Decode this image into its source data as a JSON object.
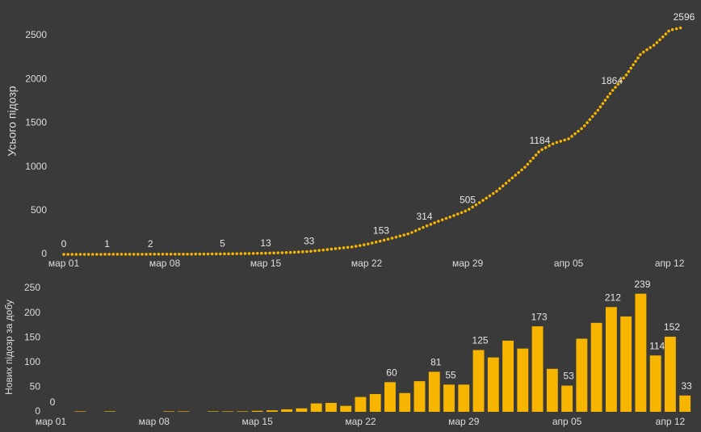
{
  "chart_data": [
    {
      "type": "line",
      "y_label": "Усього підозр",
      "color": "#f7b500",
      "categories": [
        "мар 01",
        null,
        null,
        null,
        null,
        null,
        null,
        "мар 08",
        null,
        null,
        null,
        null,
        null,
        null,
        "мар 15",
        null,
        null,
        null,
        null,
        null,
        null,
        "мар 22",
        null,
        null,
        null,
        null,
        null,
        null,
        "мар 29",
        null,
        null,
        null,
        null,
        null,
        null,
        "апр 05",
        null,
        null,
        null,
        null,
        null,
        null,
        "апр 12",
        null
      ],
      "values": [
        0,
        0,
        0,
        1,
        1,
        1,
        2,
        2,
        2,
        3,
        4,
        5,
        7,
        10,
        13,
        18,
        24,
        33,
        50,
        68,
        85,
        115,
        153,
        195,
        240,
        314,
        380,
        440,
        505,
        610,
        720,
        860,
        1000,
        1184,
        1270,
        1320,
        1450,
        1640,
        1864,
        2050,
        2290,
        2400,
        2560,
        2596
      ],
      "value_labels": [
        "0",
        null,
        null,
        "1",
        null,
        null,
        "2",
        null,
        null,
        null,
        null,
        "5",
        null,
        null,
        "13",
        null,
        null,
        "33",
        null,
        null,
        null,
        null,
        "153",
        null,
        null,
        "314",
        null,
        null,
        "505",
        null,
        null,
        null,
        null,
        "1184",
        null,
        null,
        null,
        null,
        "1864",
        null,
        null,
        null,
        null,
        "2596"
      ],
      "ylim": [
        0,
        2700
      ],
      "yticks": [
        0,
        500,
        1000,
        1500,
        2000,
        2500
      ]
    },
    {
      "type": "bar",
      "y_label": "Нових підозр за добу",
      "color": "#f7b500",
      "categories": [
        "мар 01",
        null,
        null,
        null,
        null,
        null,
        null,
        "мар 08",
        null,
        null,
        null,
        null,
        null,
        null,
        "мар 15",
        null,
        null,
        null,
        null,
        null,
        null,
        "мар 22",
        null,
        null,
        null,
        null,
        null,
        null,
        "мар 29",
        null,
        null,
        null,
        null,
        null,
        null,
        "апр 05",
        null,
        null,
        null,
        null,
        null,
        null,
        "апр 12",
        null
      ],
      "values": [
        0,
        0,
        1,
        0,
        1,
        0,
        0,
        0,
        1,
        1,
        0,
        1,
        1,
        1,
        2,
        3,
        5,
        7,
        17,
        18,
        12,
        30,
        36,
        60,
        38,
        62,
        81,
        55,
        55,
        125,
        110,
        144,
        128,
        173,
        87,
        53,
        148,
        180,
        212,
        193,
        239,
        114,
        152,
        33
      ],
      "value_labels": [
        "0",
        null,
        null,
        null,
        null,
        null,
        null,
        null,
        null,
        null,
        null,
        null,
        null,
        null,
        null,
        null,
        null,
        null,
        null,
        null,
        null,
        null,
        null,
        "60",
        null,
        null,
        "81",
        "55",
        null,
        "125",
        null,
        null,
        null,
        "173",
        null,
        "53",
        null,
        null,
        "212",
        null,
        "239",
        "114",
        "152",
        "33"
      ],
      "ylim": [
        0,
        250
      ],
      "yticks": [
        0,
        50,
        100,
        150,
        200,
        250
      ]
    }
  ]
}
